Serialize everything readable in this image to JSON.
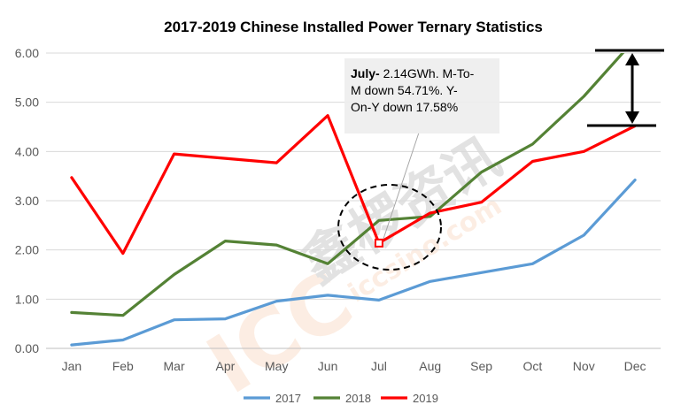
{
  "chart_data": {
    "type": "line",
    "title": "2017-2019 Chinese Installed Power Ternary Statistics",
    "categories": [
      "Jan",
      "Feb",
      "Mar",
      "Apr",
      "May",
      "Jun",
      "Jul",
      "Aug",
      "Sep",
      "Oct",
      "Nov",
      "Dec"
    ],
    "ylim": [
      0,
      6
    ],
    "yticks": [
      "0.00",
      "1.00",
      "2.00",
      "3.00",
      "4.00",
      "5.00",
      "6.00"
    ],
    "ytick_values": [
      0,
      1,
      2,
      3,
      4,
      5,
      6
    ],
    "grid": "horizontal",
    "legend_position": "bottom",
    "series": [
      {
        "name": "2017",
        "color": "#5B9BD5",
        "values": [
          0.07,
          0.17,
          0.58,
          0.6,
          0.96,
          1.08,
          0.98,
          1.36,
          1.54,
          1.72,
          2.3,
          3.42
        ]
      },
      {
        "name": "2018",
        "color": "#548235",
        "values": [
          0.73,
          0.67,
          1.5,
          2.18,
          2.1,
          1.72,
          2.6,
          2.68,
          3.58,
          4.15,
          5.12,
          6.28
        ]
      },
      {
        "name": "2019",
        "color": "#FF0000",
        "values": [
          3.47,
          1.93,
          3.95,
          3.86,
          3.77,
          4.73,
          2.14,
          2.75,
          2.97,
          3.8,
          4.0,
          4.52
        ]
      }
    ],
    "annotation": {
      "bold": "July-",
      "lines": [
        " 2.14GWh.  M-To-",
        "M down 54.71%. Y-",
        "On-Y down 17.58%"
      ]
    }
  },
  "watermark": {
    "chinese": "鑫椤资讯",
    "logo": "ICC",
    "url": "iccsino.com"
  }
}
